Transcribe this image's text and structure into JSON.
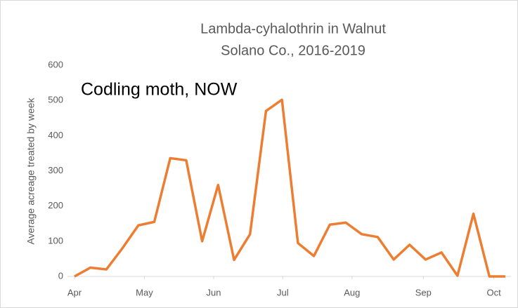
{
  "chart_data": {
    "type": "line",
    "title": "Lambda-cyhalothrin in Walnut",
    "subtitle": "Solano Co., 2016-2019",
    "annotation": "Codling moth, NOW",
    "y_label": "Average acreage treated by week",
    "x": [
      0,
      1,
      2,
      3,
      4,
      5,
      6,
      7,
      8,
      9,
      10,
      11,
      12,
      13,
      14,
      15,
      16,
      17,
      18,
      19,
      20,
      21,
      22,
      23,
      24,
      25,
      26,
      27
    ],
    "series": [
      {
        "name": "Lambda-cyhalothrin",
        "color": "#ed7d31",
        "values": [
          0,
          25,
          20,
          80,
          145,
          155,
          336,
          330,
          100,
          260,
          47,
          120,
          470,
          502,
          95,
          58,
          147,
          153,
          120,
          112,
          48,
          90,
          48,
          68,
          2,
          178,
          0,
          0
        ]
      }
    ],
    "xlim": [
      0,
      27
    ],
    "xticks": [
      {
        "value": 0,
        "label": "Apr"
      },
      {
        "value": 4.38,
        "label": "May"
      },
      {
        "value": 8.72,
        "label": "Jun"
      },
      {
        "value": 13.05,
        "label": "Jul"
      },
      {
        "value": 17.39,
        "label": "Aug"
      },
      {
        "value": 21.86,
        "label": "Sep"
      },
      {
        "value": 26.28,
        "label": "Oct"
      }
    ],
    "ylim": [
      0,
      600
    ],
    "yticks": [
      0,
      100,
      200,
      300,
      400,
      500,
      600
    ],
    "grid": false
  }
}
